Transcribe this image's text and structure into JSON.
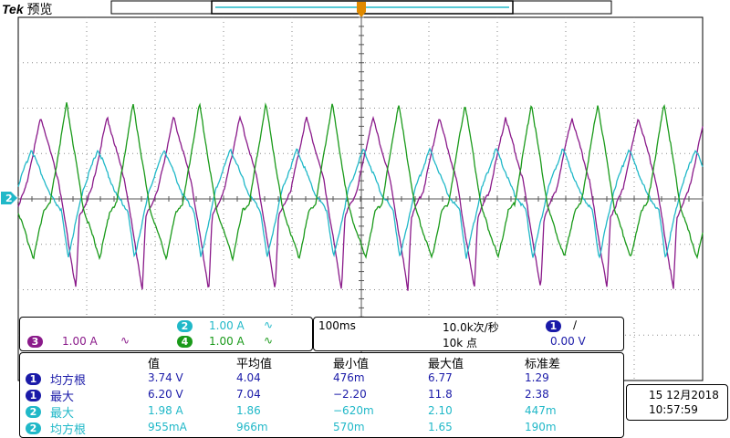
{
  "header": {
    "brand": "Tek",
    "mode": "预览"
  },
  "ground_marker": {
    "label": "2"
  },
  "channels_panel": {
    "ch2": {
      "num": "2",
      "scale": "1.00 A",
      "coupling": "∿"
    },
    "ch3": {
      "num": "3",
      "scale": "1.00 A",
      "coupling": "∿"
    },
    "ch4": {
      "num": "4",
      "scale": "1.00 A",
      "coupling": "∿"
    }
  },
  "timebase_panel": {
    "time_div": "100ms",
    "sample_rate": "10.0k次/秒",
    "record_length": "10k 点",
    "trigger_source": "1",
    "trigger_slope": "∕",
    "trigger_level": "0.00 V"
  },
  "measurements": {
    "headers": [
      "值",
      "平均值",
      "最小值",
      "最大值",
      "标准差"
    ],
    "rows": [
      {
        "ch": "1",
        "name": "均方根",
        "value": "3.74 V",
        "mean": "4.04",
        "min": "476m",
        "max": "6.77",
        "std": "1.29"
      },
      {
        "ch": "1",
        "name": "最大",
        "value": "6.20 V",
        "mean": "7.04",
        "min": "−2.20",
        "max": "11.8",
        "std": "2.38"
      },
      {
        "ch": "2",
        "name": "最大",
        "value": "1.98 A",
        "mean": "1.86",
        "min": "−620m",
        "max": "2.10",
        "std": "447m"
      },
      {
        "ch": "2",
        "name": "均方根",
        "value": "955mA",
        "mean": "966m",
        "min": "570m",
        "max": "1.65",
        "std": "190m"
      }
    ]
  },
  "datetime": {
    "date": "15 12月2018",
    "time": "10:57:59"
  },
  "colors": {
    "ch1": "#1a1aa8",
    "ch2": "#20b8c8",
    "ch3": "#8a1a8a",
    "ch4": "#1a9a1a",
    "trigger": "#e08a00"
  },
  "waveforms": {
    "period_ms": 97,
    "ch2": {
      "high_A": 1.1,
      "low_A": -1.3
    },
    "ch3": {
      "high_A": 1.8,
      "low_A": -2.0
    },
    "ch4": {
      "high_A": 2.1,
      "low_A": -1.3
    }
  }
}
